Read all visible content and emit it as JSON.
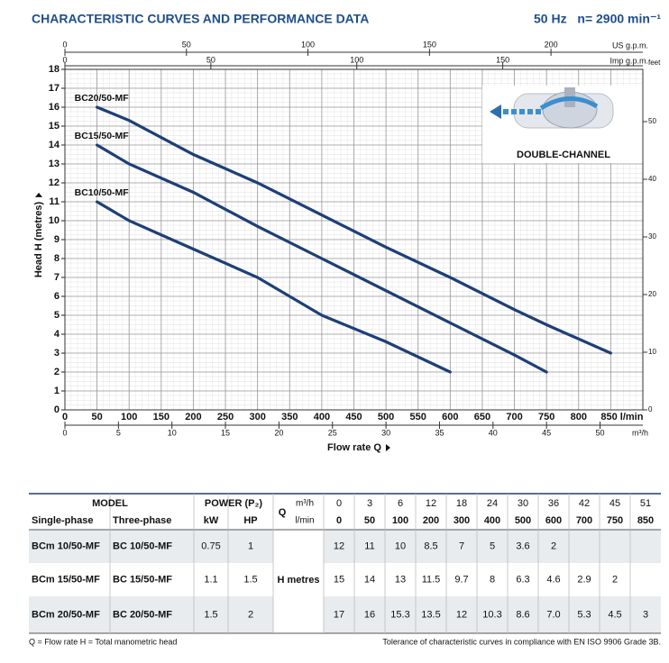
{
  "header": {
    "title": "CHARACTERISTIC CURVES AND PERFORMANCE DATA",
    "frequency": "50 Hz",
    "speed": "n= 2900 min⁻¹"
  },
  "chart_data": {
    "type": "line",
    "xlabel": "Flow rate Q",
    "ylabel": "Head H (metres)",
    "xlim": [
      0,
      900
    ],
    "xticks": [
      0,
      50,
      100,
      150,
      200,
      250,
      300,
      350,
      400,
      450,
      500,
      550,
      600,
      650,
      700,
      750,
      800,
      {
        "value": 850,
        "label": "850 l/min"
      }
    ],
    "ylim": [
      0,
      18
    ],
    "yticks": [
      0,
      1,
      2,
      3,
      4,
      5,
      6,
      7,
      8,
      9,
      10,
      11,
      12,
      13,
      14,
      15,
      16,
      17,
      18
    ],
    "y2label": "feet",
    "y2lim": [
      0,
      59.06
    ],
    "y2ticks": [
      0,
      10,
      20,
      30,
      40,
      50
    ],
    "secondary_x_axes": [
      {
        "unit": "US g.p.m.",
        "xlim": [
          0,
          237.8
        ],
        "xticks": [
          0,
          50,
          100,
          150,
          200
        ]
      },
      {
        "unit": "Imp g.p.m.",
        "xlim": [
          0,
          198
        ],
        "xticks": [
          0,
          50,
          100,
          150
        ]
      },
      {
        "unit": "m³/h",
        "xlim": [
          0,
          54
        ],
        "xticks": [
          0,
          5,
          10,
          15,
          20,
          25,
          30,
          35,
          40,
          45,
          50
        ]
      }
    ],
    "grid": true,
    "series": [
      {
        "name": "BC20/50-MF",
        "color": "#1d3f78",
        "x": [
          50,
          100,
          200,
          300,
          400,
          500,
          600,
          700,
          750,
          850
        ],
        "values": [
          16,
          15.3,
          13.5,
          12,
          10.3,
          8.6,
          7,
          5.3,
          4.5,
          3
        ]
      },
      {
        "name": "BC15/50-MF",
        "color": "#1d3f78",
        "x": [
          50,
          100,
          200,
          300,
          400,
          500,
          600,
          700,
          750
        ],
        "values": [
          14,
          13,
          11.5,
          9.7,
          8,
          6.3,
          4.6,
          2.9,
          2
        ]
      },
      {
        "name": "BC10/50-MF",
        "color": "#1d3f78",
        "x": [
          50,
          100,
          200,
          300,
          400,
          500,
          600
        ],
        "values": [
          11,
          10,
          8.5,
          7,
          5,
          3.6,
          2
        ]
      }
    ],
    "inset_label": "DOUBLE-CHANNEL"
  },
  "table": {
    "header": {
      "model": "MODEL",
      "power": "POWER (P₂)",
      "q": "Q",
      "m3h_unit": "m³/h",
      "lmin_unit": "l/min",
      "single": "Single-phase",
      "three": "Three-phase",
      "kw": "kW",
      "hp": "HP",
      "h_label": "H metres"
    },
    "flow_m3h": [
      0,
      3,
      6,
      12,
      18,
      24,
      30,
      36,
      42,
      45,
      51
    ],
    "flow_lmin": [
      0,
      50,
      100,
      200,
      300,
      400,
      500,
      600,
      700,
      750,
      850
    ],
    "rows": [
      {
        "single": "BCm 10/50-MF",
        "three": "BC 10/50-MF",
        "kw": "0.75",
        "hp": "1",
        "heads": [
          "12",
          "11",
          "10",
          "8.5",
          "7",
          "5",
          "3.6",
          "2",
          null,
          null,
          null
        ]
      },
      {
        "single": "BCm 15/50-MF",
        "three": "BC 15/50-MF",
        "kw": "1.1",
        "hp": "1.5",
        "heads": [
          "15",
          "14",
          "13",
          "11.5",
          "9.7",
          "8",
          "6.3",
          "4.6",
          "2.9",
          "2",
          null
        ]
      },
      {
        "single": "BCm 20/50-MF",
        "three": "BC 20/50-MF",
        "kw": "1.5",
        "hp": "2",
        "heads": [
          "17",
          "16",
          "15.3",
          "13.5",
          "12",
          "10.3",
          "8.6",
          "7.0",
          "5.3",
          "4.5",
          "3"
        ]
      }
    ]
  },
  "footer": {
    "legend": "Q = Flow rate  H = Total manometric head",
    "tolerance": "Tolerance of characteristic curves in compliance with EN ISO 9906 Grade 3B."
  }
}
